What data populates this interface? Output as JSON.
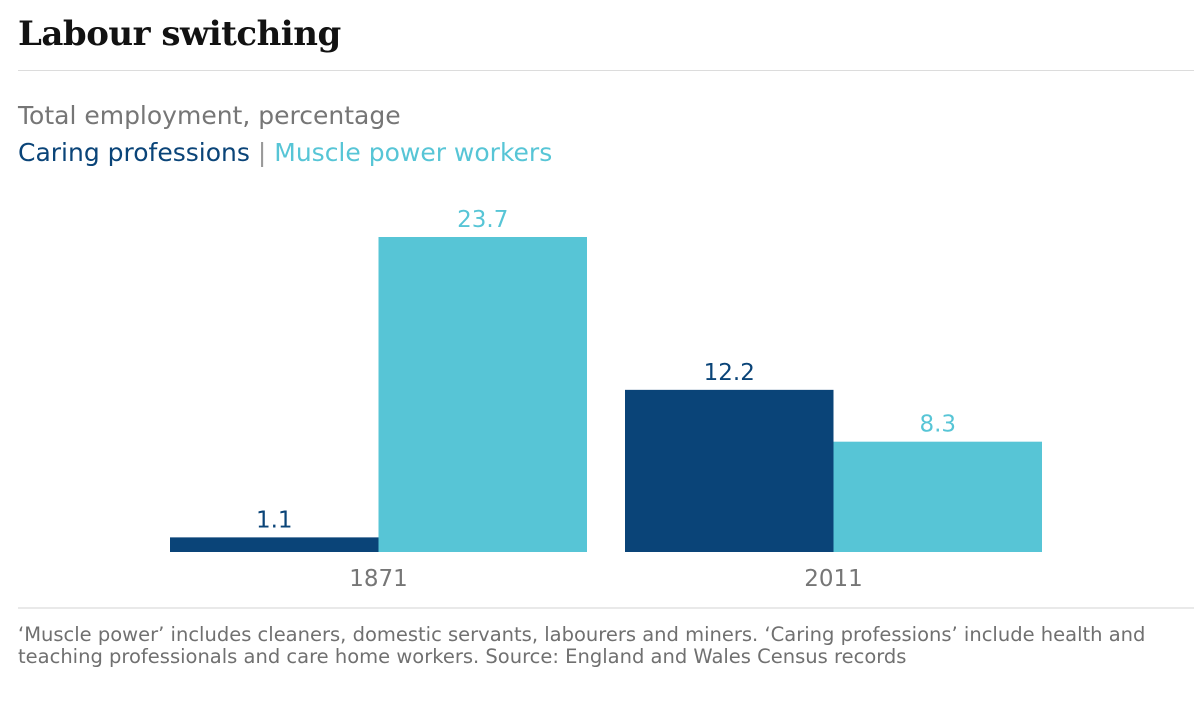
{
  "header": {
    "title": "Labour switching"
  },
  "subtitle": "Total employment, percentage",
  "legend": {
    "separator": "|"
  },
  "footnote": "‘Muscle power’ includes cleaners, domestic servants, labourers and miners. ‘Caring professions’ include health and teaching professionals and care home workers. Source: England and Wales Census records",
  "colors": {
    "caring": "#0a4478",
    "muscle": "#57c5d6"
  },
  "chart_data": {
    "type": "bar",
    "title": "Labour switching",
    "subtitle": "Total employment, percentage",
    "categories": [
      "1871",
      "2011"
    ],
    "series": [
      {
        "name": "Caring professions",
        "values": [
          1.1,
          12.2
        ],
        "labels": [
          "1.1",
          "12.2"
        ]
      },
      {
        "name": "Muscle power workers",
        "values": [
          23.7,
          8.3
        ],
        "labels": [
          "23.7",
          "8.3"
        ]
      }
    ],
    "xlabel": "",
    "ylabel": "",
    "ylim": [
      0,
      23.7
    ],
    "grid": false,
    "legend": "top-left"
  }
}
